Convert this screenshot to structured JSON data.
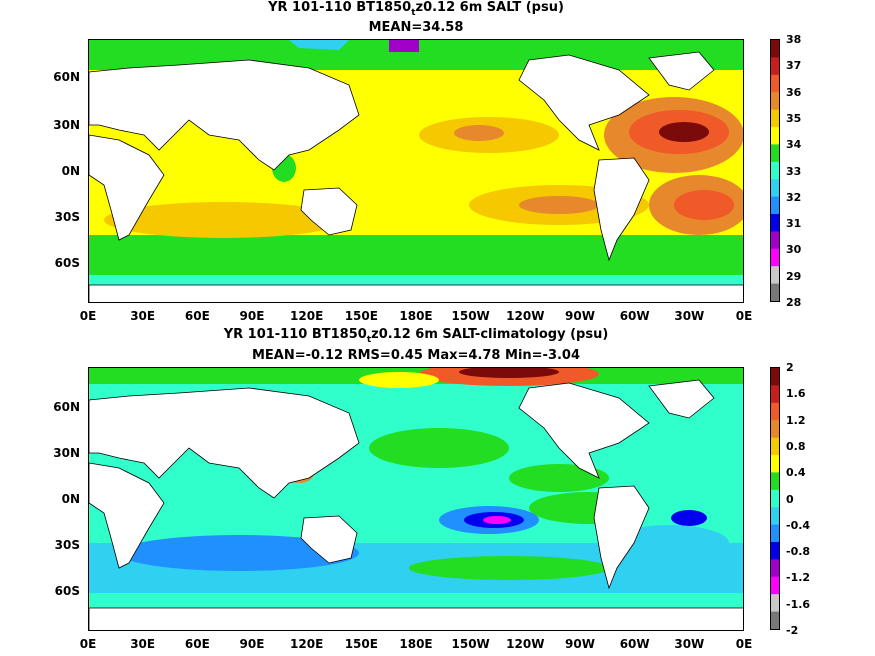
{
  "panel1": {
    "title_pre": "YR 101-110 BT1850",
    "title_sub": "t",
    "title_post": "z0.12 6m SALT (psu)",
    "stats": "MEAN=34.58",
    "colorbar_labels": [
      "38",
      "37",
      "36",
      "35",
      "34",
      "33",
      "32",
      "31",
      "30",
      "29",
      "28"
    ],
    "colors": [
      "#7b0a0a",
      "#c81e1e",
      "#f05a28",
      "#e8882c",
      "#f5c800",
      "#ffff00",
      "#22dd22",
      "#30ffcc",
      "#30d0f0",
      "#2090ff",
      "#0000ee",
      "#a000c8",
      "#ff00ff",
      "#c8c8c8",
      "#787878"
    ]
  },
  "panel2": {
    "title_pre": "YR 101-110 BT1850",
    "title_sub": "t",
    "title_post": "z0.12 6m SALT-climatology (psu)",
    "stats": "MEAN=-0.12   RMS=0.45   Max=4.78   Min=-3.04",
    "colorbar_labels": [
      "2",
      "1.6",
      "1.2",
      "0.8",
      "0.4",
      "0",
      "-0.4",
      "-0.8",
      "-1.2",
      "-1.6",
      "-2"
    ],
    "colors": [
      "#7b0a0a",
      "#c81e1e",
      "#f05a28",
      "#e8882c",
      "#f5c800",
      "#ffff00",
      "#22dd22",
      "#30ffcc",
      "#30d0f0",
      "#2090ff",
      "#0000ee",
      "#a000c8",
      "#ff00ff",
      "#c8c8c8",
      "#787878"
    ]
  },
  "lat_labels": [
    "60N",
    "30N",
    "0N",
    "30S",
    "60S"
  ],
  "lon_labels": [
    "0E",
    "30E",
    "60E",
    "90E",
    "120E",
    "150E",
    "180E",
    "150W",
    "120W",
    "90W",
    "60W",
    "30W",
    "0E"
  ]
}
